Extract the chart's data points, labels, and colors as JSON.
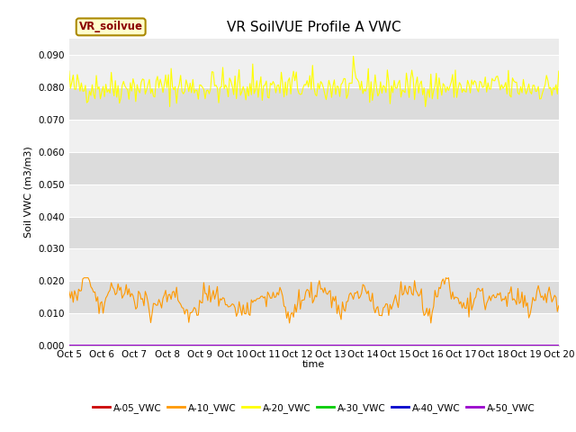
{
  "title": "VR SoilVUE Profile A VWC",
  "xlabel": "time",
  "ylabel": "Soil VWC (m3/m3)",
  "ylim": [
    0.0,
    0.095
  ],
  "yticks": [
    0.0,
    0.01,
    0.02,
    0.03,
    0.04,
    0.05,
    0.06,
    0.07,
    0.08,
    0.09
  ],
  "n_points": 361,
  "legend_label_box": "VR_soilvue",
  "legend_entries": [
    "A-05_VWC",
    "A-10_VWC",
    "A-20_VWC",
    "A-30_VWC",
    "A-40_VWC",
    "A-50_VWC"
  ],
  "legend_colors": [
    "#cc0000",
    "#ff9900",
    "#ffff00",
    "#00cc00",
    "#0000cc",
    "#9900cc"
  ],
  "series_colors": {
    "A05": "#cc0000",
    "A10": "#ff9900",
    "A20": "#ffff00",
    "A30": "#00cc00",
    "A40": "#0000cc",
    "A50": "#9900cc"
  },
  "A20_base": 0.08,
  "A10_base": 0.013,
  "A50_value": 0.0002,
  "plot_bg_color": "#ebebeb",
  "band_color_dark": "#dcdcdc",
  "band_color_light": "#f0f0f0",
  "x_tick_labels": [
    "Oct 5",
    "Oct 6",
    "Oct 7",
    "Oct 8",
    "Oct 9",
    "Oct 10",
    "Oct 11",
    "Oct 12",
    "Oct 13",
    "Oct 14",
    "Oct 15",
    "Oct 16",
    "Oct 17",
    "Oct 18",
    "Oct 19",
    "Oct 20"
  ],
  "title_fontsize": 11,
  "axis_label_fontsize": 8,
  "tick_fontsize": 7.5
}
